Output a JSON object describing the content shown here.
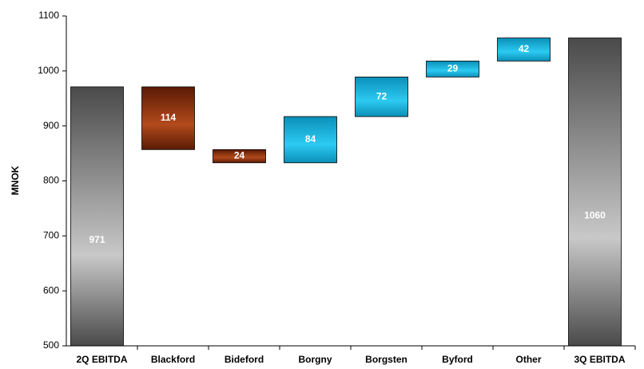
{
  "chart_data": {
    "type": "waterfall",
    "y_label": "MNOK",
    "categories": [
      "2Q EBITDA",
      "Blackford",
      "Bideford",
      "Borgny",
      "Borgsten",
      "Byford",
      "Other",
      "3Q EBITDA"
    ],
    "values": [
      971,
      114,
      24,
      84,
      72,
      29,
      42,
      1060
    ],
    "measure": [
      "absolute",
      "decrease",
      "decrease",
      "increase",
      "increase",
      "increase",
      "increase",
      "absolute"
    ],
    "colors": {
      "absolute": "#8c8c8c",
      "decrease": "#a33a10",
      "increase": "#22bde8"
    },
    "ylim": [
      500,
      1100
    ],
    "yticks": [
      500,
      600,
      700,
      800,
      900,
      1000,
      1100
    ],
    "grid": false
  }
}
